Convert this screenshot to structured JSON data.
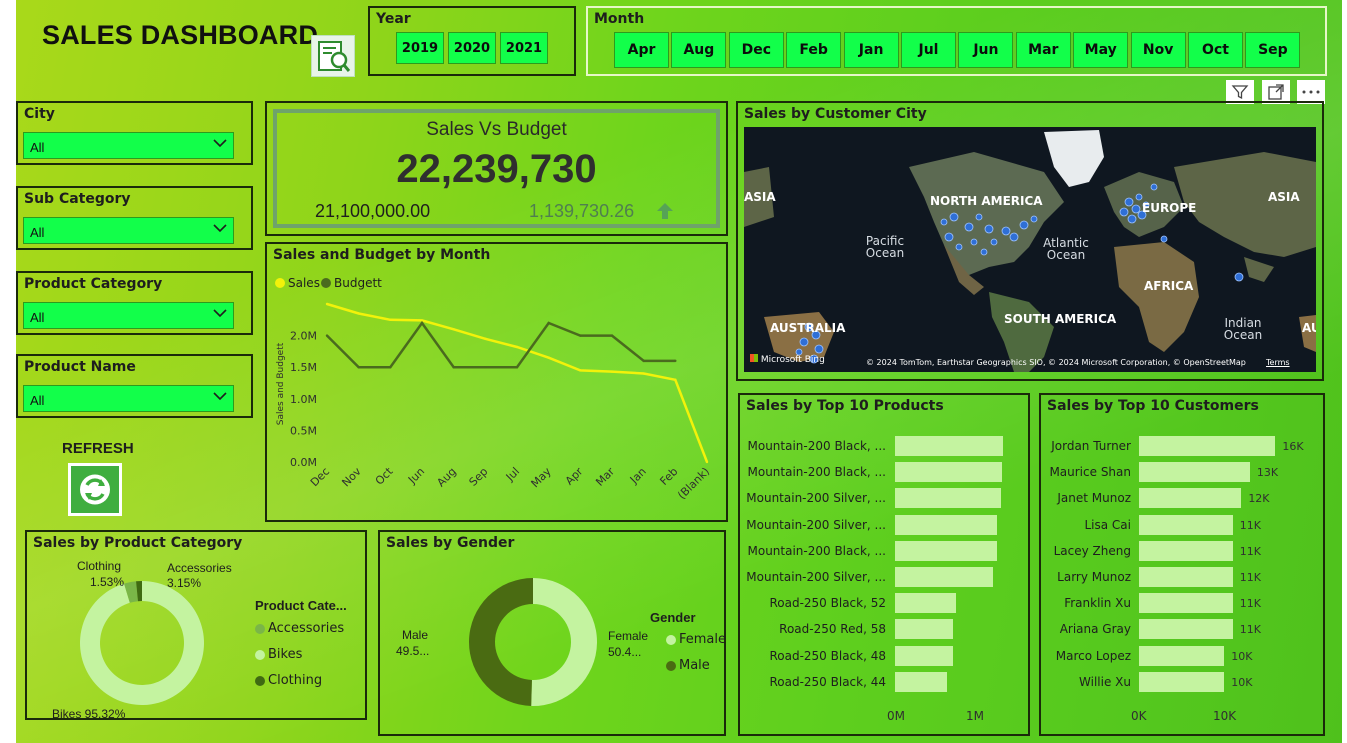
{
  "header": {
    "title": "SALES DASHBOARD",
    "report_icon": "report-search-icon"
  },
  "year_slicer": {
    "label": "Year",
    "options": [
      "2019",
      "2020",
      "2021"
    ]
  },
  "month_slicer": {
    "label": "Month",
    "options": [
      "Apr",
      "Aug",
      "Dec",
      "Feb",
      "Jan",
      "Jul",
      "Jun",
      "Mar",
      "May",
      "Nov",
      "Oct",
      "Sep"
    ]
  },
  "filters": [
    {
      "label": "City",
      "value": "All"
    },
    {
      "label": "Sub Category",
      "value": "All"
    },
    {
      "label": "Product Category",
      "value": "All"
    },
    {
      "label": "Product Name",
      "value": "All"
    }
  ],
  "refresh": {
    "label": "REFRESH",
    "icon": "refresh-icon"
  },
  "kpi": {
    "title": "Sales Vs Budget",
    "value": "22,239,730",
    "target": "21,100,000.00",
    "variance": "1,139,730.26",
    "trend_icon": "arrow-up-icon"
  },
  "toolbar_icons": [
    "filter-icon",
    "focus-mode-icon",
    "more-options-icon"
  ],
  "map": {
    "title": "Sales by Customer City",
    "labels": {
      "north_america": "NORTH AMERICA",
      "south_america": "SOUTH AMERICA",
      "europe": "EUROPE",
      "asia_left": "ASIA",
      "asia_right": "ASIA",
      "africa": "AFRICA",
      "australia": "AUSTRALIA",
      "australia_right": "AU",
      "pacific": "Pacific Ocean",
      "atlantic": "Atlantic Ocean",
      "indian": "Indian Ocean"
    },
    "bing": "Microsoft Bing",
    "credit": "© 2024 TomTom, Earthstar Geographics SIO, © 2024 Microsoft Corporation, © OpenStreetMap",
    "terms": "Terms"
  },
  "line_chart": {
    "title": "Sales and Budget by Month",
    "legend": [
      "Sales",
      "Budgett"
    ],
    "ylabel": "Sales and Budgett",
    "yticks": [
      "0.0M",
      "0.5M",
      "1.0M",
      "1.5M",
      "2.0M"
    ]
  },
  "pie_category": {
    "title": "Sales by Product Category",
    "legend_title": "Product Cate...",
    "labels": [
      "Clothing",
      "1.53%",
      "Accessories",
      "3.15%",
      "Bikes 95.32%"
    ]
  },
  "gender": {
    "title": "Sales by Gender",
    "legend_title": "Gender",
    "labels": [
      "Male",
      "49.5...",
      "Female",
      "50.4..."
    ]
  },
  "top_products": {
    "title": "Sales by Top 10 Products",
    "axis": [
      "0M",
      "1M"
    ]
  },
  "top_customers": {
    "title": "Sales by Top 10 Customers",
    "axis": [
      "0K",
      "10K"
    ]
  },
  "colors": {
    "sales": "#f2f20a",
    "budget": "#4a6b1e",
    "bikes": "#c4f3a0",
    "accessories": "#7ab648",
    "clothing": "#3f6a12",
    "female": "#c4f3a0",
    "male": "#4a6b12",
    "slicer": "#12ff4a",
    "bar": "#c4f3a0"
  },
  "chart_data": [
    {
      "type": "line",
      "title": "Sales and Budget by Month",
      "categories": [
        "Dec",
        "Nov",
        "Oct",
        "Jun",
        "Aug",
        "Sep",
        "Jul",
        "May",
        "Apr",
        "Mar",
        "Jan",
        "Feb",
        "(Blank)"
      ],
      "series": [
        {
          "name": "Sales",
          "values": [
            2.5,
            2.35,
            2.25,
            2.24,
            2.1,
            1.95,
            1.82,
            1.65,
            1.45,
            1.43,
            1.4,
            1.3,
            0.0
          ]
        },
        {
          "name": "Budgett",
          "values": [
            2.0,
            1.5,
            1.5,
            2.2,
            1.5,
            1.5,
            1.5,
            2.2,
            2.0,
            2.0,
            1.6,
            1.6,
            null
          ]
        }
      ],
      "ylabel": "Sales and Budgett",
      "ylim": [
        0,
        2.5
      ]
    },
    {
      "type": "pie",
      "title": "Sales by Product Category",
      "categories": [
        "Bikes",
        "Accessories",
        "Clothing"
      ],
      "values": [
        95.32,
        3.15,
        1.53
      ]
    },
    {
      "type": "pie",
      "title": "Sales by Gender",
      "categories": [
        "Female",
        "Male"
      ],
      "values": [
        50.4,
        49.5
      ]
    },
    {
      "type": "bar",
      "title": "Sales by Top 10 Products",
      "categories": [
        "Mountain-200 Black, ...",
        "Mountain-200 Black, ...",
        "Mountain-200 Silver, ...",
        "Mountain-200 Silver, ...",
        "Mountain-200 Black, ...",
        "Mountain-200 Silver, ...",
        "Road-250 Black, 52",
        "Road-250 Red, 58",
        "Road-250 Black, 48",
        "Road-250 Black, 44"
      ],
      "values": [
        1.35,
        1.34,
        1.32,
        1.28,
        1.27,
        1.23,
        0.76,
        0.72,
        0.72,
        0.65
      ],
      "xlim": [
        0,
        1.5
      ]
    },
    {
      "type": "bar",
      "title": "Sales by Top 10 Customers",
      "categories": [
        "Jordan Turner",
        "Maurice Shan",
        "Janet Munoz",
        "Lisa Cai",
        "Lacey Zheng",
        "Larry Munoz",
        "Franklin Xu",
        "Ariana Gray",
        "Marco Lopez",
        "Willie Xu"
      ],
      "values": [
        16,
        13,
        12,
        11,
        11,
        11,
        11,
        11,
        10,
        10
      ],
      "value_labels": [
        "16K",
        "13K",
        "12K",
        "11K",
        "11K",
        "11K",
        "11K",
        "11K",
        "10K",
        "10K"
      ],
      "xlim": [
        0,
        19
      ]
    }
  ]
}
